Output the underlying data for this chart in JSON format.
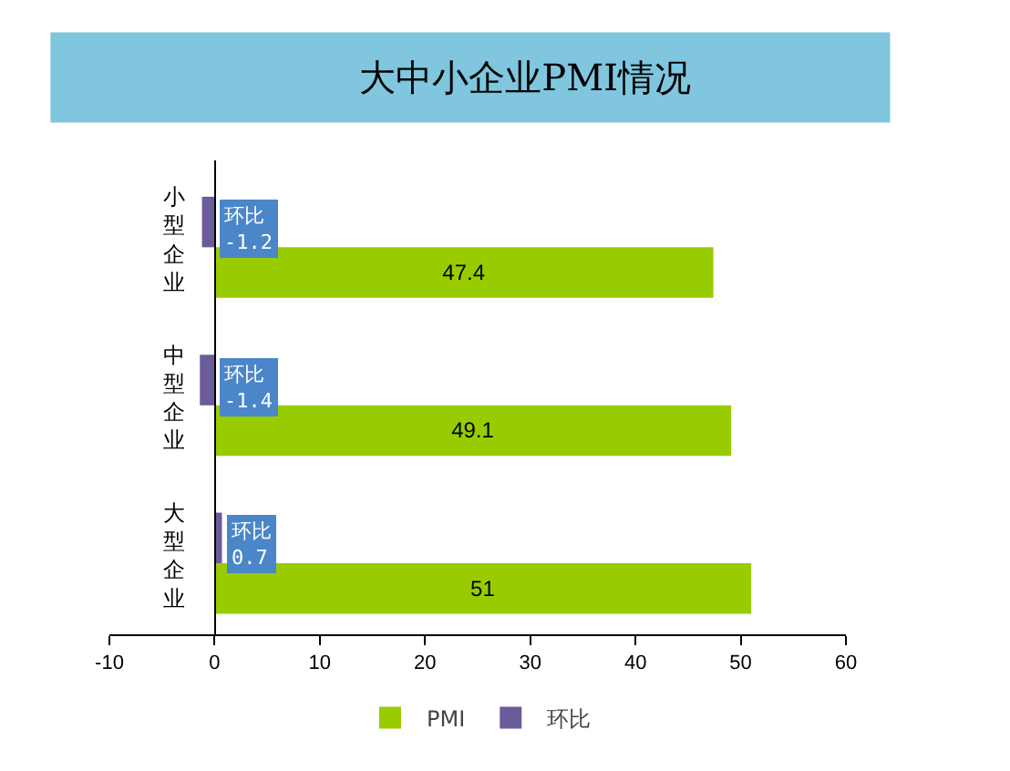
{
  "chart_data": {
    "type": "bar",
    "orientation": "horizontal",
    "title": "大中小企业PMI情况",
    "categories": [
      "小型企业",
      "中型企业",
      "大型企业"
    ],
    "series": [
      {
        "name": "PMI",
        "color": "#99cc00",
        "values": [
          47.4,
          49.1,
          51
        ]
      },
      {
        "name": "环比",
        "color": "#6b5b9a",
        "values": [
          -1.2,
          -1.4,
          0.7
        ],
        "value_labels": [
          "环比\n-1.2",
          "环比\n-1.4",
          "环比\n0.7"
        ]
      }
    ],
    "data_labels": true,
    "xlim": [
      -10,
      60
    ],
    "xticks": [
      -10,
      0,
      10,
      20,
      30,
      40,
      50,
      60
    ],
    "grid": false,
    "legend": "bottom"
  }
}
